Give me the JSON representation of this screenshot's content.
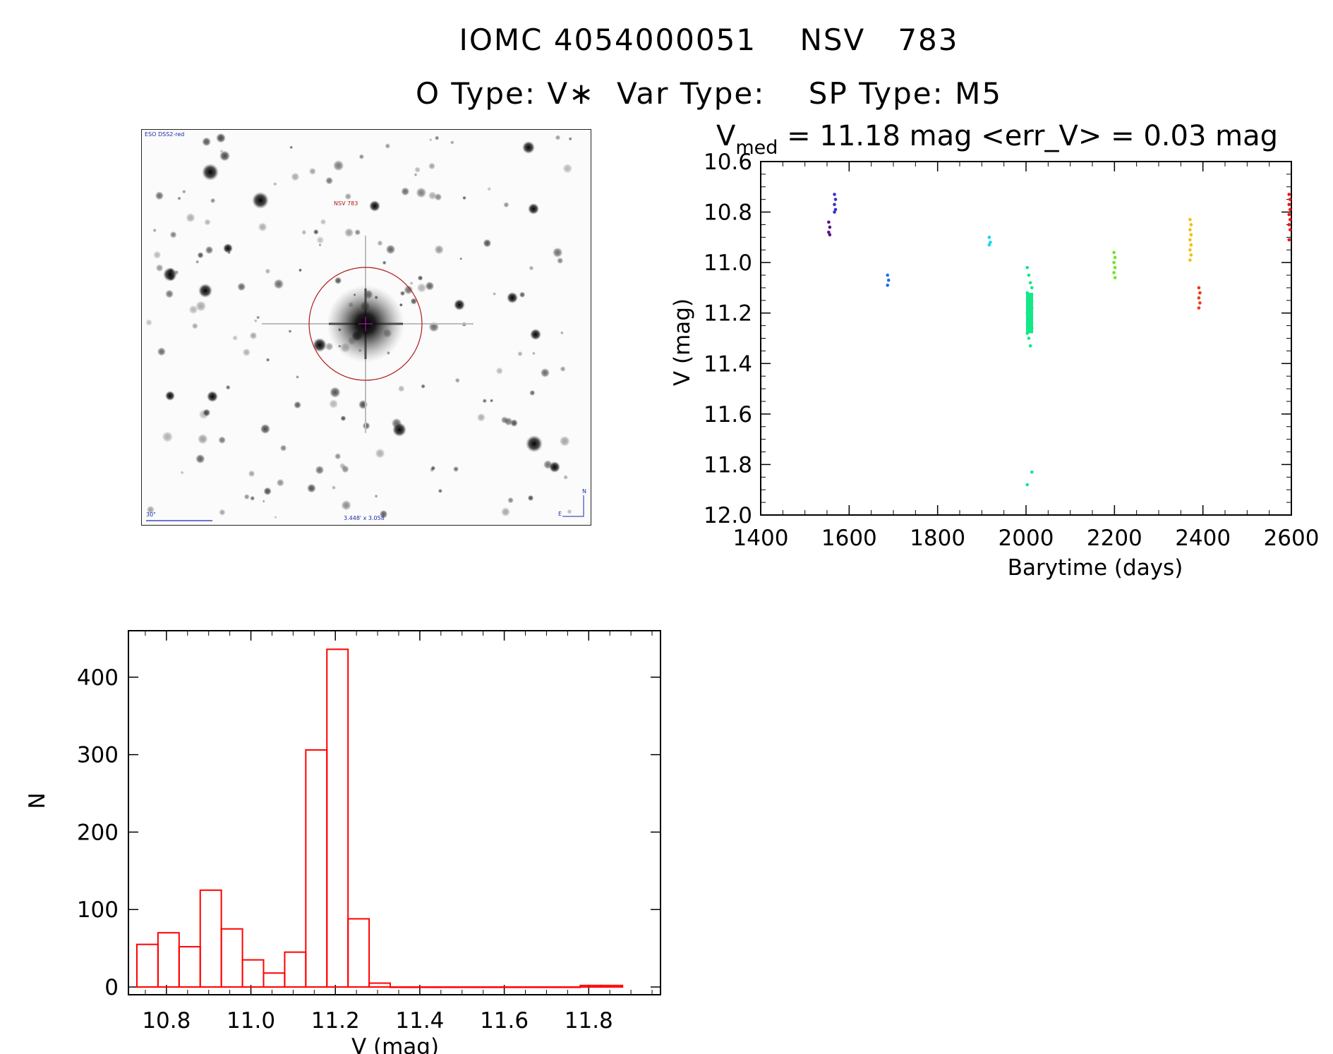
{
  "header": {
    "line1": "IOMC 4054000051    NSV   783",
    "line2": "O Type: V∗  Var Type:    SP Type: M5"
  },
  "stamp": {
    "survey": "ESO DSS2-red",
    "object": "NSV 783",
    "scale": "30\"",
    "fov": "3.448' x 3.058'",
    "north": "N",
    "east": "E"
  },
  "lightcurve_header": {
    "main": "V",
    "sub": "med",
    "rest": " = 11.18 mag <err_V> = 0.03 mag"
  },
  "chart_data": [
    {
      "type": "scatter",
      "title": "V_med = 11.18 mag <err_V> = 0.03 mag",
      "xlabel": "Barytime (days)",
      "ylabel": "V (mag)",
      "xlim": [
        1400,
        2600
      ],
      "ylim": [
        12.0,
        10.6
      ],
      "y_inverted": true,
      "xticks": [
        "1400",
        "1600",
        "1800",
        "2000",
        "2200",
        "2400",
        "2600"
      ],
      "yticks": [
        "10.6",
        "10.8",
        "11.0",
        "11.2",
        "11.4",
        "11.6",
        "11.8",
        "12.0"
      ],
      "series": [
        {
          "color": "#5a0f8c",
          "x": 1555,
          "y": [
            10.84,
            10.86,
            10.88,
            10.89
          ]
        },
        {
          "color": "#3a2fd0",
          "x": 1568,
          "y": [
            10.73,
            10.75,
            10.77,
            10.79,
            10.8
          ]
        },
        {
          "color": "#1e6de8",
          "x": 1688,
          "y": [
            11.05,
            11.07,
            11.09
          ]
        },
        {
          "color": "#14d8e8",
          "x": 1918,
          "y": [
            10.9,
            10.92,
            10.93
          ]
        },
        {
          "color": "#12e888",
          "x": 2008,
          "y": [
            11.02,
            11.05,
            11.08,
            11.1,
            11.12,
            11.14,
            11.16,
            11.18,
            11.2,
            11.22,
            11.24,
            11.26,
            11.28,
            11.3,
            11.33,
            11.83,
            11.88
          ]
        },
        {
          "color": "#6ee81e",
          "x": 2200,
          "y": [
            10.96,
            10.98,
            11.0,
            11.02,
            11.04,
            11.06
          ]
        },
        {
          "color": "#f2c00c",
          "x": 2372,
          "y": [
            10.83,
            10.85,
            10.87,
            10.89,
            10.91,
            10.93,
            10.95,
            10.97,
            10.99
          ]
        },
        {
          "color": "#f03a12",
          "x": 2392,
          "y": [
            11.1,
            11.12,
            11.14,
            11.16,
            11.18
          ]
        },
        {
          "color": "#f01010",
          "x": 2596,
          "y": [
            10.73,
            10.75,
            10.77,
            10.79,
            10.81,
            10.83,
            10.85,
            10.87,
            10.91
          ]
        }
      ]
    },
    {
      "type": "bar",
      "subtype": "histogram",
      "xlabel": "V (mag)",
      "ylabel": "N",
      "xlim": [
        10.71,
        11.97
      ],
      "ylim": [
        -10,
        460
      ],
      "xticks": [
        "10.8",
        "11.0",
        "11.2",
        "11.4",
        "11.6",
        "11.8"
      ],
      "yticks": [
        "0",
        "100",
        "200",
        "300",
        "400"
      ],
      "color": "#ff0000",
      "bin_width": 0.05,
      "bin_edges_start": 10.73,
      "values": [
        55,
        70,
        52,
        125,
        75,
        35,
        18,
        45,
        306,
        436,
        88,
        5,
        0,
        0,
        0,
        0,
        0,
        0,
        0,
        0,
        0,
        2,
        2
      ]
    }
  ]
}
